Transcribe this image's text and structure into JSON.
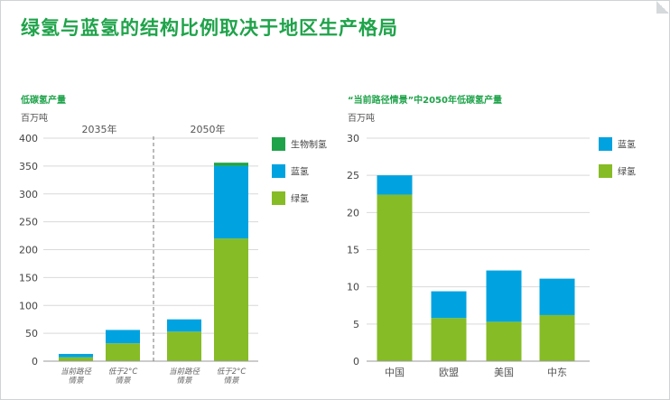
{
  "title": "绿氢与蓝氢的结构比例取决于地区生产格局",
  "colors": {
    "green_hydrogen": "#86bc25",
    "blue_hydrogen": "#00a3e0",
    "bio_hydrogen": "#1fa34a",
    "title": "#1fa34a",
    "grid": "#d9d9d9"
  },
  "chart_data": [
    {
      "type": "bar",
      "stacked": true,
      "subtitle": "低碳氢产量",
      "unit": "百万吨",
      "groups": [
        {
          "label": "2035年",
          "categories": [
            "当前路径\n情景",
            "低于2°C\n情景"
          ]
        },
        {
          "label": "2050年",
          "categories": [
            "当前路径\n情景",
            "低于2°C\n情景"
          ]
        }
      ],
      "categories": [
        "当前路径\n情景",
        "低于2°C\n情景",
        "当前路径\n情景",
        "低于2°C\n情景"
      ],
      "series": [
        {
          "name": "绿氢",
          "color": "#86bc25",
          "values": [
            7,
            32,
            53,
            220
          ]
        },
        {
          "name": "蓝氢",
          "color": "#00a3e0",
          "values": [
            6,
            24,
            22,
            130
          ]
        },
        {
          "name": "生物制氢",
          "color": "#1fa34a",
          "values": [
            0,
            0,
            0,
            6
          ]
        }
      ],
      "ylim": [
        0,
        400
      ],
      "yticks": [
        0,
        50,
        100,
        150,
        200,
        250,
        300,
        350,
        400
      ],
      "grid": true,
      "legend_position": "right",
      "legend_order": [
        "生物制氢",
        "蓝氢",
        "绿氢"
      ]
    },
    {
      "type": "bar",
      "stacked": true,
      "subtitle": "“当前路径情景”中2050年低碳氢产量",
      "unit": "百万吨",
      "categories": [
        "中国",
        "欧盟",
        "美国",
        "中东"
      ],
      "series": [
        {
          "name": "绿氢",
          "color": "#86bc25",
          "values": [
            22.4,
            5.8,
            5.3,
            6.2
          ]
        },
        {
          "name": "蓝氢",
          "color": "#00a3e0",
          "values": [
            2.6,
            3.6,
            6.9,
            4.9
          ]
        }
      ],
      "ylim": [
        0,
        30
      ],
      "yticks": [
        0,
        5,
        10,
        15,
        20,
        25,
        30
      ],
      "grid": true,
      "legend_position": "right",
      "legend_order": [
        "蓝氢",
        "绿氢"
      ]
    }
  ]
}
